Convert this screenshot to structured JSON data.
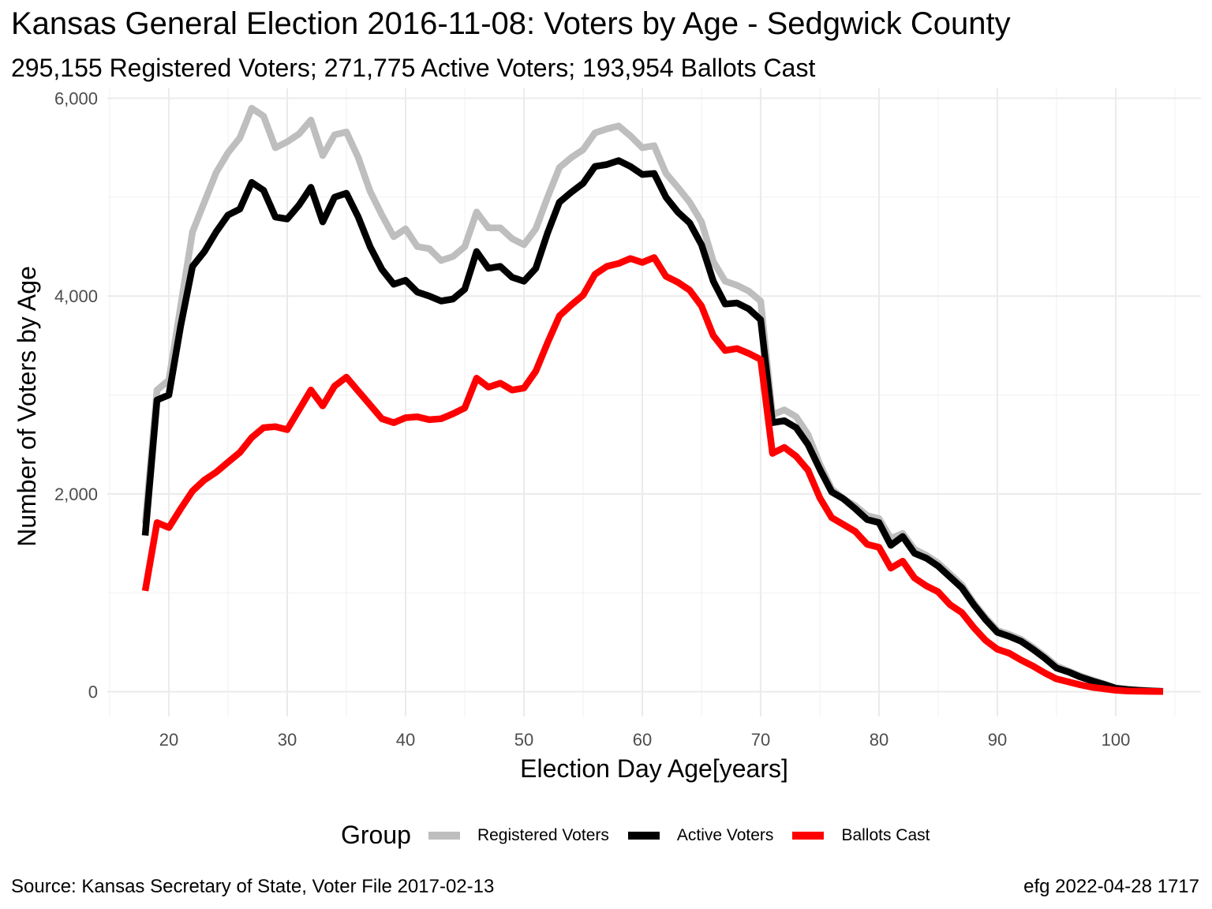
{
  "chart_data": {
    "type": "line",
    "title": "Kansas General Election 2016-11-08:  Voters by Age - Sedgwick County",
    "subtitle": "295,155 Registered Voters; 271,775 Active Voters; 193,954 Ballots Cast",
    "xlabel": "Election Day Age[years]",
    "ylabel": "Number of Voters by Age",
    "xlim": [
      14.8,
      107.2
    ],
    "ylim": [
      -250,
      6100
    ],
    "x_ticks": [
      20,
      30,
      40,
      50,
      60,
      70,
      80,
      90,
      100
    ],
    "x_tick_labels": [
      "20",
      "30",
      "40",
      "50",
      "60",
      "70",
      "80",
      "90",
      "100"
    ],
    "y_ticks": [
      0,
      2000,
      4000,
      6000
    ],
    "y_tick_labels": [
      "0",
      "2,000",
      "4,000",
      "6,000"
    ],
    "grid": true,
    "legend_title": "Group",
    "legend_position": "bottom",
    "x": [
      18,
      19,
      20,
      21,
      22,
      23,
      24,
      25,
      26,
      27,
      28,
      29,
      30,
      31,
      32,
      33,
      34,
      35,
      36,
      37,
      38,
      39,
      40,
      41,
      42,
      43,
      44,
      45,
      46,
      47,
      48,
      49,
      50,
      51,
      52,
      53,
      54,
      55,
      56,
      57,
      58,
      59,
      60,
      61,
      62,
      63,
      64,
      65,
      66,
      67,
      68,
      69,
      70,
      71,
      72,
      73,
      74,
      75,
      76,
      77,
      78,
      79,
      80,
      81,
      82,
      83,
      84,
      85,
      86,
      87,
      88,
      89,
      90,
      91,
      92,
      93,
      94,
      95,
      96,
      97,
      98,
      99,
      100,
      101,
      102,
      103,
      104
    ],
    "series": [
      {
        "name": "Registered Voters",
        "color": "#bebebe",
        "values": [
          1700,
          3050,
          3150,
          3900,
          4650,
          4950,
          5250,
          5450,
          5600,
          5900,
          5820,
          5500,
          5560,
          5640,
          5780,
          5420,
          5630,
          5660,
          5400,
          5060,
          4820,
          4600,
          4680,
          4500,
          4480,
          4360,
          4400,
          4500,
          4850,
          4690,
          4690,
          4580,
          4520,
          4680,
          5000,
          5300,
          5400,
          5480,
          5650,
          5690,
          5720,
          5620,
          5500,
          5520,
          5240,
          5100,
          4950,
          4750,
          4350,
          4150,
          4110,
          4050,
          3950,
          2800,
          2850,
          2780,
          2600,
          2300,
          2050,
          1950,
          1880,
          1780,
          1750,
          1550,
          1600,
          1440,
          1380,
          1300,
          1190,
          1080,
          900,
          750,
          620,
          580,
          530,
          450,
          360,
          260,
          210,
          160,
          120,
          80,
          40,
          25,
          15,
          10,
          5
        ]
      },
      {
        "name": "Active Voters",
        "color": "#000000",
        "values": [
          1580,
          2950,
          3000,
          3700,
          4300,
          4450,
          4650,
          4820,
          4880,
          5150,
          5070,
          4800,
          4780,
          4920,
          5100,
          4750,
          5000,
          5040,
          4800,
          4500,
          4270,
          4120,
          4160,
          4040,
          4000,
          3950,
          3970,
          4070,
          4450,
          4280,
          4300,
          4190,
          4150,
          4280,
          4640,
          4950,
          5050,
          5140,
          5310,
          5330,
          5370,
          5310,
          5230,
          5240,
          5000,
          4850,
          4740,
          4520,
          4150,
          3920,
          3930,
          3870,
          3760,
          2720,
          2740,
          2670,
          2500,
          2250,
          2020,
          1950,
          1850,
          1740,
          1710,
          1480,
          1570,
          1400,
          1350,
          1270,
          1160,
          1050,
          880,
          730,
          600,
          560,
          510,
          430,
          340,
          240,
          200,
          150,
          110,
          75,
          35,
          22,
          14,
          8,
          4
        ]
      },
      {
        "name": "Ballots Cast",
        "color": "#ff0000",
        "values": [
          1020,
          1710,
          1660,
          1850,
          2030,
          2140,
          2220,
          2320,
          2420,
          2570,
          2670,
          2680,
          2650,
          2850,
          3050,
          2890,
          3090,
          3180,
          3040,
          2900,
          2760,
          2720,
          2770,
          2780,
          2750,
          2760,
          2810,
          2870,
          3170,
          3080,
          3120,
          3050,
          3070,
          3240,
          3530,
          3800,
          3910,
          4010,
          4220,
          4300,
          4330,
          4380,
          4340,
          4390,
          4200,
          4140,
          4060,
          3900,
          3600,
          3450,
          3470,
          3420,
          3360,
          2410,
          2470,
          2380,
          2240,
          1960,
          1760,
          1690,
          1620,
          1490,
          1460,
          1250,
          1320,
          1150,
          1070,
          1010,
          880,
          800,
          650,
          520,
          430,
          390,
          320,
          260,
          190,
          130,
          100,
          70,
          45,
          30,
          15,
          8,
          5,
          3,
          2
        ]
      }
    ]
  },
  "caption": {
    "source": "Source:  Kansas Secretary of State, Voter File  2017-02-13",
    "credit": "efg 2022-04-28 1717"
  }
}
